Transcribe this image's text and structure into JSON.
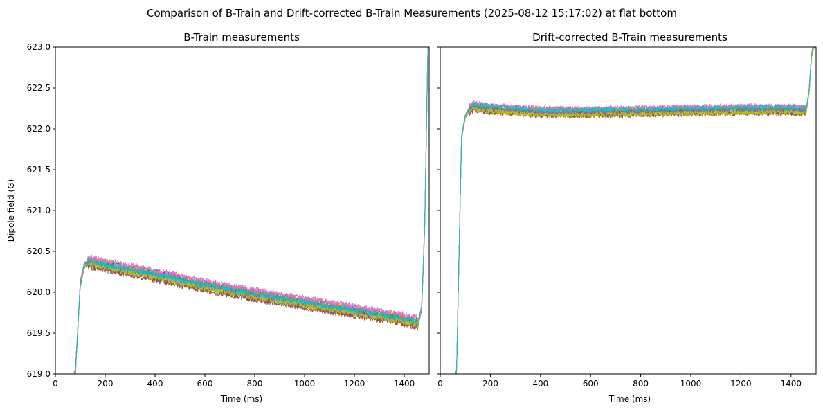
{
  "figure": {
    "suptitle": "Comparison of B-Train and Drift-corrected B-Train Measurements (2025-08-12 15:17:02) at flat bottom"
  },
  "chart_data": [
    {
      "type": "line",
      "title": "B-Train measurements",
      "xlabel": "Time (ms)",
      "ylabel": "Dipole field (G)",
      "xlim": [
        0,
        1500
      ],
      "ylim": [
        619.0,
        623.0
      ],
      "x_ticks": [
        0,
        200,
        400,
        600,
        800,
        1000,
        1200,
        1400
      ],
      "y_ticks": [
        619.0,
        619.5,
        620.0,
        620.5,
        621.0,
        621.5,
        622.0,
        622.5,
        623.0
      ],
      "x_tick_labels": [
        "0",
        "200",
        "400",
        "600",
        "800",
        "1000",
        "1200",
        "1400"
      ],
      "y_tick_labels": [
        "619.0",
        "619.5",
        "620.0",
        "620.5",
        "621.0",
        "621.5",
        "622.0",
        "622.5",
        "623.0"
      ],
      "grid": false,
      "series_count": 10,
      "noise": 0.035,
      "series_offsets": [
        0.05,
        0.03,
        0.01,
        -0.01,
        -0.03,
        -0.05,
        0.07,
        0.0,
        -0.02,
        0.02
      ],
      "trend": [
        [
          80,
          619.0
        ],
        [
          100,
          620.1
        ],
        [
          115,
          620.32
        ],
        [
          130,
          620.36
        ],
        [
          200,
          620.32
        ],
        [
          400,
          620.2
        ],
        [
          600,
          620.07
        ],
        [
          800,
          619.96
        ],
        [
          1000,
          619.86
        ],
        [
          1200,
          619.76
        ],
        [
          1400,
          619.66
        ],
        [
          1455,
          619.62
        ],
        [
          1470,
          619.8
        ],
        [
          1482,
          620.8
        ],
        [
          1495,
          623.0
        ]
      ]
    },
    {
      "type": "line",
      "title": "Drift-corrected B-Train measurements",
      "xlabel": "Time (ms)",
      "xlim": [
        0,
        1500
      ],
      "ylim": [
        619.0,
        623.0
      ],
      "x_ticks": [
        0,
        200,
        400,
        600,
        800,
        1000,
        1200,
        1400
      ],
      "y_ticks": [
        619.0,
        619.5,
        620.0,
        620.5,
        621.0,
        621.5,
        622.0,
        622.5,
        623.0
      ],
      "x_tick_labels": [
        "0",
        "200",
        "400",
        "600",
        "800",
        "1000",
        "1200",
        "1400"
      ],
      "grid": false,
      "shared_y": true,
      "series_count": 10,
      "noise": 0.03,
      "series_offsets": [
        0.04,
        0.02,
        0.01,
        -0.01,
        -0.02,
        -0.04,
        0.05,
        0.0,
        -0.03,
        0.03
      ],
      "trend": [
        [
          65,
          619.0
        ],
        [
          85,
          621.9
        ],
        [
          100,
          622.15
        ],
        [
          115,
          622.23
        ],
        [
          135,
          622.27
        ],
        [
          200,
          622.24
        ],
        [
          400,
          622.2
        ],
        [
          600,
          622.2
        ],
        [
          800,
          622.21
        ],
        [
          1000,
          622.22
        ],
        [
          1200,
          622.23
        ],
        [
          1400,
          622.23
        ],
        [
          1460,
          622.22
        ],
        [
          1472,
          622.45
        ],
        [
          1482,
          622.9
        ],
        [
          1490,
          623.0
        ]
      ]
    }
  ],
  "colors": [
    "#1f77b4",
    "#ff7f0e",
    "#2ca02c",
    "#d62728",
    "#9467bd",
    "#8c564b",
    "#e377c2",
    "#7f7f7f",
    "#bcbd22",
    "#17becf"
  ]
}
